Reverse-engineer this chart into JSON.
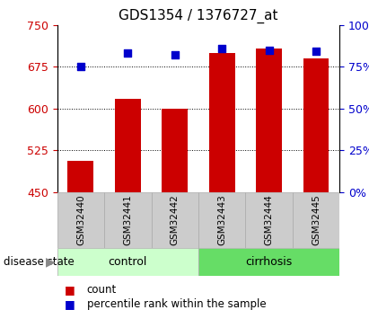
{
  "title": "GDS1354 / 1376727_at",
  "samples": [
    "GSM32440",
    "GSM32441",
    "GSM32442",
    "GSM32443",
    "GSM32444",
    "GSM32445"
  ],
  "counts": [
    507,
    617,
    600,
    700,
    708,
    690
  ],
  "percentile_ranks": [
    75,
    83,
    82,
    86,
    85,
    84
  ],
  "groups": [
    "control",
    "control",
    "control",
    "cirrhosis",
    "cirrhosis",
    "cirrhosis"
  ],
  "ylim_left": [
    450,
    750
  ],
  "yticks_left": [
    450,
    525,
    600,
    675,
    750
  ],
  "ylim_right": [
    0,
    100
  ],
  "yticks_right": [
    0,
    25,
    50,
    75,
    100
  ],
  "bar_color": "#cc0000",
  "dot_color": "#0000cc",
  "control_color": "#ccffcc",
  "cirrhosis_color": "#66dd66",
  "sample_box_color": "#cccccc",
  "left_tick_color": "#cc0000",
  "right_tick_color": "#0000cc",
  "bar_width": 0.55,
  "dot_size": 40,
  "grid_color": "black",
  "legend_dot_size": 8
}
